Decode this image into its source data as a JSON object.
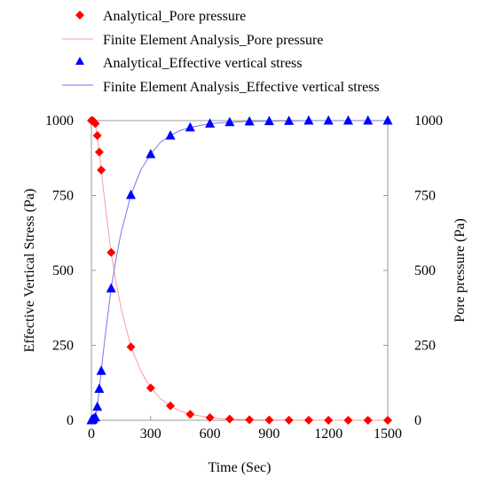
{
  "chart_data": {
    "type": "scatter",
    "x_axis": {
      "label": "Time (Sec)",
      "range": [
        0,
        1500
      ],
      "ticks": [
        0,
        300,
        600,
        900,
        1200,
        1500
      ]
    },
    "y_left": {
      "label": "Effective Vertical Stress (Pa)",
      "range": [
        0,
        1000
      ],
      "ticks": [
        0,
        250,
        500,
        750,
        1000
      ]
    },
    "y_right": {
      "label": "Pore pressure (Pa)",
      "range": [
        0,
        1000
      ],
      "ticks": [
        0,
        250,
        500,
        750,
        1000
      ]
    },
    "grid": false,
    "legend_position": "top",
    "series": [
      {
        "name": "Analytical_Pore pressure",
        "type": "scatter",
        "marker": "diamond",
        "color": "#ff0000",
        "axis": "right",
        "x": [
          0,
          5,
          10,
          20,
          30,
          40,
          50,
          100,
          200,
          300,
          400,
          500,
          600,
          700,
          800,
          900,
          1000,
          1100,
          1200,
          1300,
          1400,
          1500
        ],
        "y": [
          1000,
          1000,
          998,
          990,
          950,
          895,
          835,
          560,
          245,
          108,
          48,
          20,
          9,
          4,
          2,
          1,
          0.5,
          0.2,
          0.1,
          0.05,
          0.02,
          0.01
        ]
      },
      {
        "name": "Finite Element Analysis_Pore pressure",
        "type": "line",
        "color": "#ff9a9a",
        "axis": "right",
        "x": [
          0,
          5,
          10,
          15,
          20,
          25,
          30,
          40,
          50,
          60,
          80,
          100,
          125,
          150,
          200,
          250,
          300,
          350,
          400,
          450,
          500,
          600,
          700,
          800,
          900,
          1000,
          1100,
          1200,
          1300,
          1400,
          1500
        ],
        "y": [
          1000,
          1000,
          998,
          995,
          990,
          972,
          950,
          895,
          835,
          775,
          665,
          560,
          460,
          375,
          245,
          165,
          108,
          72,
          48,
          31,
          20,
          9,
          4,
          2,
          1,
          0.5,
          0.2,
          0.1,
          0.05,
          0.02,
          0.01
        ]
      },
      {
        "name": "Analytical_Effective vertical stress",
        "type": "scatter",
        "marker": "triangle",
        "color": "#0000ff",
        "axis": "left",
        "x": [
          0,
          5,
          10,
          20,
          30,
          40,
          50,
          100,
          200,
          300,
          400,
          500,
          600,
          700,
          800,
          900,
          1000,
          1100,
          1200,
          1300,
          1400,
          1500
        ],
        "y": [
          0,
          2,
          5,
          10,
          45,
          105,
          165,
          440,
          752,
          888,
          950,
          977,
          990,
          995,
          997,
          998,
          999,
          1000,
          1000,
          1000,
          1000,
          1000
        ]
      },
      {
        "name": "Finite Element Analysis_Effective vertical stress",
        "type": "line",
        "color": "#7777ee",
        "axis": "left",
        "x": [
          0,
          5,
          10,
          15,
          20,
          25,
          30,
          40,
          50,
          60,
          80,
          100,
          125,
          150,
          200,
          250,
          300,
          350,
          400,
          450,
          500,
          600,
          700,
          800,
          900,
          1000,
          1100,
          1200,
          1300,
          1400,
          1500
        ],
        "y": [
          0,
          2,
          5,
          7,
          10,
          28,
          45,
          105,
          165,
          225,
          335,
          440,
          540,
          625,
          752,
          835,
          888,
          928,
          950,
          967,
          977,
          990,
          995,
          997,
          998,
          999,
          1000,
          1000,
          1000,
          1000,
          1000
        ]
      }
    ]
  }
}
